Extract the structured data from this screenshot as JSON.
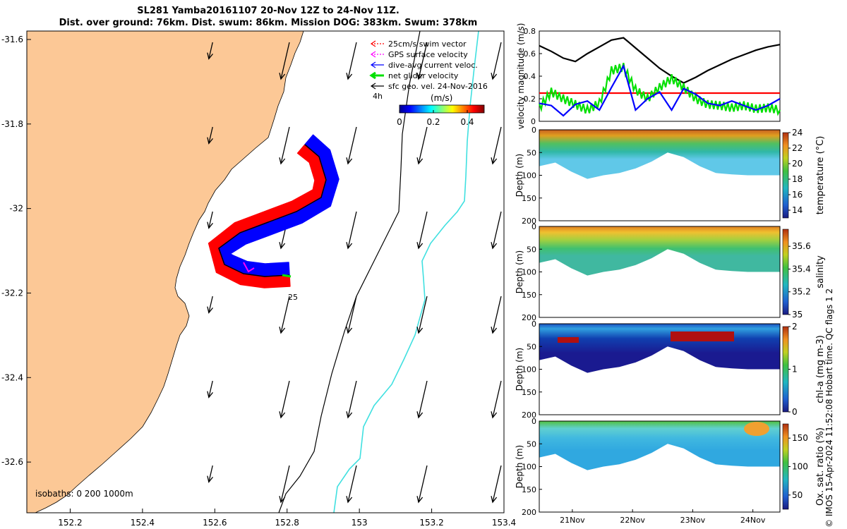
{
  "title_line1": "SL281 Yamba20161107 20-Nov 12Z to 24-Nov 11Z.",
  "title_line2": "Dist. over ground: 76km. Dist. swum: 86km. Mission DOG: 383km. Swum: 378km",
  "footer": "© IMOS 15-Apr-2024 11:52:08 Hobart time. QC flags 1  2",
  "colors": {
    "land": "#fcc896",
    "swim": "#ff0000",
    "gps": "#ff00ff",
    "dive": "#0000ff",
    "net": "#00e000",
    "sfc": "#000000",
    "isobath": "#40e0e0"
  },
  "chart_data": [
    {
      "type": "map",
      "id": "track-map",
      "x_ticks": [
        "152.2",
        "152.4",
        "152.6",
        "152.8",
        "153",
        "153.2",
        "153.4"
      ],
      "y_ticks": [
        "-31.6",
        "-31.8",
        "-32",
        "-32.2",
        "-32.4",
        "-32.6"
      ],
      "xlim": [
        152.08,
        153.4
      ],
      "ylim": [
        -32.72,
        -31.58
      ],
      "legend": [
        {
          "label": "25cm/s swim vector",
          "icon": "dotted-arrow",
          "color": "#ff0000"
        },
        {
          "label": "GPS surface velocity",
          "icon": "dotted-arrow",
          "color": "#ff00ff"
        },
        {
          "label": "dive-avg current veloc.",
          "icon": "arrow",
          "color": "#0000ff"
        },
        {
          "label": "net glider velocity",
          "icon": "thick-arrow",
          "color": "#00e000"
        },
        {
          "label": "sfc geo. vel. 24-Nov-2016",
          "icon": "arrow",
          "color": "#000000"
        }
      ],
      "colorbar": {
        "label": "(m/s)",
        "tick_labels": [
          "0",
          "0.2",
          "0.4"
        ],
        "range": [
          0,
          0.5
        ]
      },
      "time_marker": "4h",
      "track_label": "25",
      "isobaths_label": "isobaths: 0   200  1000m"
    },
    {
      "type": "line",
      "id": "velocity-panel",
      "ylabel": "velocity magnitude (m/s)",
      "ylim": [
        0,
        0.8
      ],
      "yticks": [
        "0",
        "0.2",
        "0.4",
        "0.6",
        "0.8"
      ],
      "x_days": [
        0,
        0.2,
        0.4,
        0.6,
        0.8,
        1.0,
        1.2,
        1.4,
        1.6,
        1.8,
        2.0,
        2.2,
        2.4,
        2.6,
        2.8,
        3.0,
        3.2,
        3.4,
        3.6,
        3.8,
        4.0
      ],
      "series": [
        {
          "name": "sfc geo. vel.",
          "color": "#000000",
          "values": [
            0.67,
            0.62,
            0.56,
            0.53,
            0.6,
            0.66,
            0.72,
            0.74,
            0.65,
            0.56,
            0.47,
            0.4,
            0.34,
            0.39,
            0.45,
            0.5,
            0.55,
            0.59,
            0.63,
            0.66,
            0.68
          ]
        },
        {
          "name": "25cm/s swim vector",
          "color": "#ff0000",
          "values": [
            0.25,
            0.25,
            0.25,
            0.25,
            0.25,
            0.25,
            0.25,
            0.25,
            0.25,
            0.25,
            0.25,
            0.25,
            0.25,
            0.25,
            0.25,
            0.25,
            0.25,
            0.25,
            0.25,
            0.25,
            0.25
          ]
        },
        {
          "name": "net glider velocity",
          "color": "#00e000",
          "values": [
            0.12,
            0.26,
            0.2,
            0.15,
            0.1,
            0.16,
            0.45,
            0.48,
            0.28,
            0.2,
            0.3,
            0.38,
            0.3,
            0.2,
            0.15,
            0.14,
            0.12,
            0.14,
            0.11,
            0.12,
            0.1
          ]
        },
        {
          "name": "dive-avg current veloc.",
          "color": "#0000ff",
          "values": [
            0.16,
            0.14,
            0.05,
            0.15,
            0.18,
            0.1,
            0.3,
            0.49,
            0.1,
            0.2,
            0.26,
            0.1,
            0.29,
            0.24,
            0.16,
            0.14,
            0.18,
            0.14,
            0.1,
            0.14,
            0.2
          ]
        }
      ]
    },
    {
      "type": "heatmap",
      "id": "temperature-section",
      "ylabel": "Depth (m)",
      "yticks": [
        "0",
        "50",
        "100",
        "150",
        "200"
      ],
      "ylim": [
        0,
        200
      ],
      "cbar_label": "temperature (°C)",
      "cbar_ticks": [
        "14",
        "16",
        "18",
        "20",
        "22",
        "24"
      ],
      "crange": [
        13,
        24
      ]
    },
    {
      "type": "heatmap",
      "id": "salinity-section",
      "ylabel": "Depth (m)",
      "yticks": [
        "0",
        "50",
        "100",
        "150",
        "200"
      ],
      "ylim": [
        0,
        200
      ],
      "cbar_label": "salinity",
      "cbar_ticks": [
        "35",
        "35.2",
        "35.4",
        "35.6"
      ],
      "crange": [
        35,
        35.75
      ]
    },
    {
      "type": "heatmap",
      "id": "chla-section",
      "ylabel": "Depth (m)",
      "yticks": [
        "0",
        "50",
        "100",
        "150",
        "200"
      ],
      "ylim": [
        0,
        200
      ],
      "cbar_label": "chl-a (mg m-3)",
      "cbar_ticks": [
        "0",
        "1",
        "2"
      ],
      "crange": [
        0,
        2
      ]
    },
    {
      "type": "heatmap",
      "id": "oxygen-section",
      "ylabel": "Depth (m)",
      "yticks": [
        "0",
        "50",
        "100",
        "150",
        "200"
      ],
      "ylim": [
        0,
        200
      ],
      "cbar_label": "Ox. sat. ratio (%)",
      "cbar_ticks": [
        "50",
        "100",
        "150"
      ],
      "crange": [
        25,
        175
      ],
      "xticks": [
        "21Nov",
        "22Nov",
        "23Nov",
        "24Nov"
      ]
    }
  ]
}
